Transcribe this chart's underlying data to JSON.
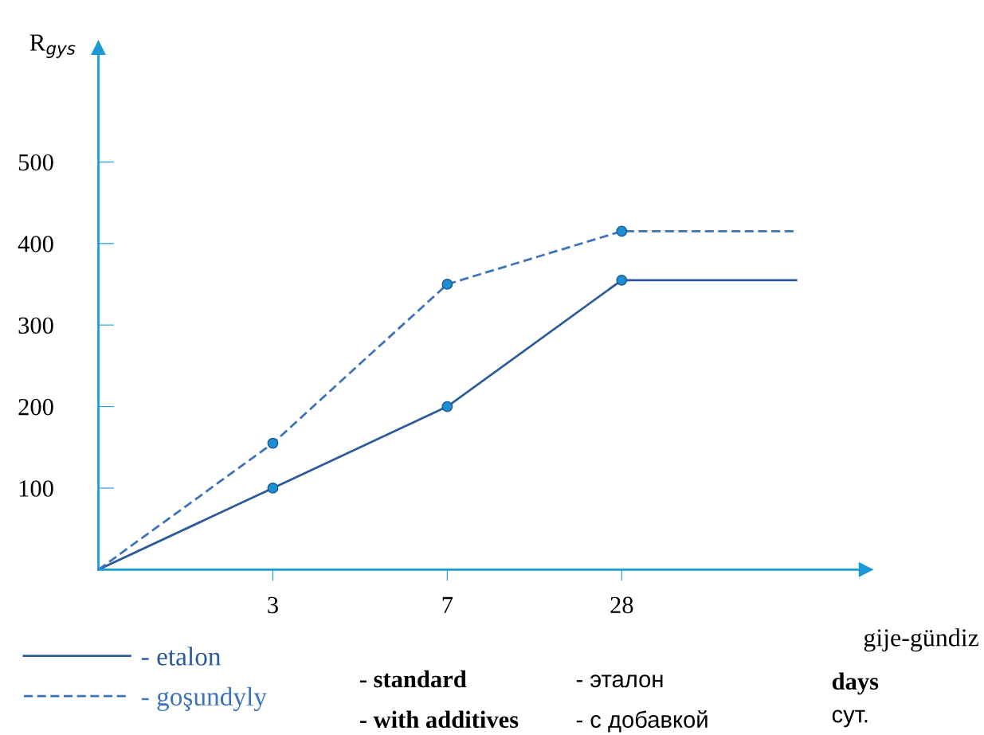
{
  "chart_data": {
    "type": "line",
    "ylabel": "R$_{gys}$",
    "categories": [
      null,
      "3",
      "7",
      "28",
      null
    ],
    "ylim": [
      0,
      640
    ],
    "yticks": [
      100,
      200,
      300,
      400,
      500
    ],
    "grid": false,
    "legend": "bottom left",
    "series": [
      {
        "name": "- etalon",
        "color": "#2c5a9a",
        "values": [
          0,
          100,
          200,
          355,
          355
        ],
        "line_style": "solid",
        "marker": "none"
      },
      {
        "name": "- goşundyly",
        "color": "#3d73b8",
        "values": [
          0,
          155,
          350,
          415,
          415
        ],
        "line_style": "dashed",
        "marker": "none"
      },
      {
        "type": "scatter",
        "color": "#1b8fd2",
        "values": [
          null,
          100,
          200,
          355,
          null
        ],
        "marker": "circle"
      },
      {
        "type": "scatter",
        "color": "#1b8fd2",
        "values": [
          null,
          155,
          350,
          415,
          null
        ],
        "marker": "circle"
      }
    ],
    "annotations": [
      "gije-gündiz",
      "days",
      "сут.",
      "- standard",
      "- with additives",
      "- эталон",
      "- с добавкой"
    ]
  }
}
